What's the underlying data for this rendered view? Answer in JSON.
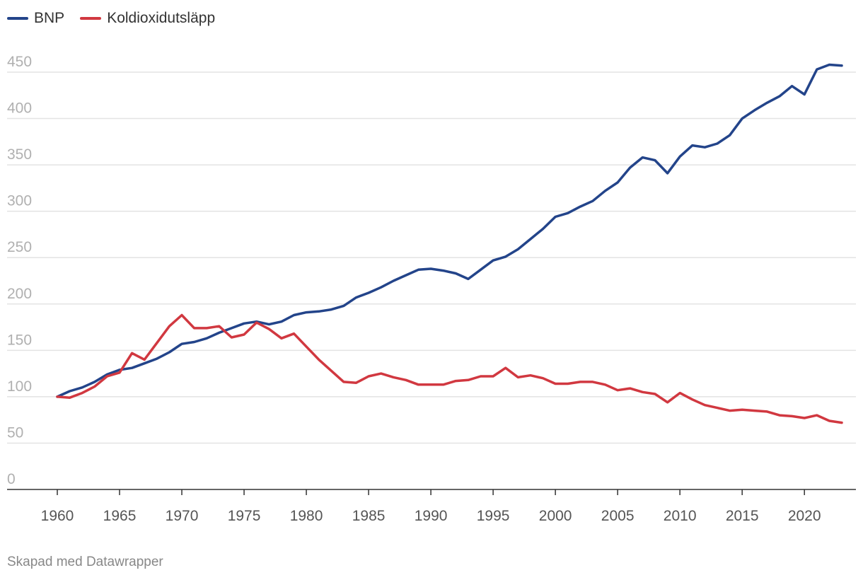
{
  "footer": "Skapad med Datawrapper",
  "chart_data": {
    "type": "line",
    "xlabel": "",
    "ylabel": "",
    "xlim": [
      1960,
      2023
    ],
    "ylim": [
      0,
      450
    ],
    "y_ticks": [
      0,
      50,
      100,
      150,
      200,
      250,
      300,
      350,
      400,
      450
    ],
    "x_ticks": [
      1960,
      1965,
      1970,
      1975,
      1980,
      1985,
      1990,
      1995,
      2000,
      2005,
      2010,
      2015,
      2020
    ],
    "grid": true,
    "legend_position": "top-left",
    "x": [
      1960,
      1961,
      1962,
      1963,
      1964,
      1965,
      1966,
      1967,
      1968,
      1969,
      1970,
      1971,
      1972,
      1973,
      1974,
      1975,
      1976,
      1977,
      1978,
      1979,
      1980,
      1981,
      1982,
      1983,
      1984,
      1985,
      1986,
      1987,
      1988,
      1989,
      1990,
      1991,
      1992,
      1993,
      1994,
      1995,
      1996,
      1997,
      1998,
      1999,
      2000,
      2001,
      2002,
      2003,
      2004,
      2005,
      2006,
      2007,
      2008,
      2009,
      2010,
      2011,
      2012,
      2013,
      2014,
      2015,
      2016,
      2017,
      2018,
      2019,
      2020,
      2021,
      2022,
      2023
    ],
    "series": [
      {
        "name": "BNP",
        "color": "#23448a",
        "values": [
          100,
          106,
          110,
          116,
          124,
          129,
          131,
          136,
          141,
          148,
          157,
          159,
          163,
          169,
          174,
          179,
          181,
          178,
          181,
          188,
          191,
          192,
          194,
          198,
          207,
          212,
          218,
          225,
          231,
          237,
          238,
          236,
          233,
          227,
          237,
          247,
          251,
          259,
          270,
          281,
          294,
          298,
          305,
          311,
          322,
          331,
          347,
          358,
          355,
          341,
          359,
          371,
          369,
          373,
          382,
          400,
          409,
          417,
          424,
          435,
          426,
          453,
          458,
          457
        ]
      },
      {
        "name": "Koldioxidutsläpp",
        "color": "#d13840",
        "values": [
          100,
          99,
          104,
          111,
          122,
          126,
          147,
          140,
          158,
          176,
          188,
          174,
          174,
          176,
          164,
          167,
          180,
          173,
          163,
          168,
          154,
          140,
          128,
          116,
          115,
          122,
          125,
          121,
          118,
          113,
          113,
          113,
          117,
          118,
          122,
          122,
          131,
          121,
          123,
          120,
          114,
          114,
          116,
          116,
          113,
          107,
          109,
          105,
          103,
          94,
          104,
          97,
          91,
          88,
          85,
          86,
          85,
          84,
          80,
          79,
          77,
          80,
          74,
          72
        ]
      }
    ]
  }
}
